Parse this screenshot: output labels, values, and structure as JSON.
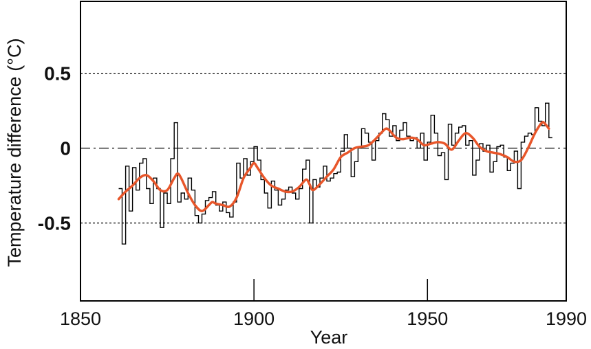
{
  "chart_data": {
    "type": "line",
    "xlabel": "Year",
    "ylabel": "Temperature difference (°C)",
    "xlim": [
      1850,
      1990
    ],
    "ylim": [
      -1.02,
      0.98
    ],
    "x_ticks": [
      1850,
      1900,
      1950,
      1990
    ],
    "y_ticks": [
      0.5,
      0,
      -0.5
    ],
    "y_tick_labels": [
      "0.5",
      "0",
      "-0.5"
    ],
    "reference_lines": [
      {
        "y": 0.5,
        "style": "dotted"
      },
      {
        "y": 0,
        "style": "dash-dot"
      },
      {
        "y": -0.5,
        "style": "dotted"
      }
    ],
    "grid": false,
    "legend": "none",
    "series": [
      {
        "style": "step",
        "color": "#000000",
        "x": [
          1861,
          1862,
          1863,
          1864,
          1865,
          1866,
          1867,
          1868,
          1869,
          1870,
          1871,
          1872,
          1873,
          1874,
          1875,
          1876,
          1877,
          1878,
          1879,
          1880,
          1881,
          1882,
          1883,
          1884,
          1885,
          1886,
          1887,
          1888,
          1889,
          1890,
          1891,
          1892,
          1893,
          1894,
          1895,
          1896,
          1897,
          1898,
          1899,
          1900,
          1901,
          1902,
          1903,
          1904,
          1905,
          1906,
          1907,
          1908,
          1909,
          1910,
          1911,
          1912,
          1913,
          1914,
          1915,
          1916,
          1917,
          1918,
          1919,
          1920,
          1921,
          1922,
          1923,
          1924,
          1925,
          1926,
          1927,
          1928,
          1929,
          1930,
          1931,
          1932,
          1933,
          1934,
          1935,
          1936,
          1937,
          1938,
          1939,
          1940,
          1941,
          1942,
          1943,
          1944,
          1945,
          1946,
          1947,
          1948,
          1949,
          1950,
          1951,
          1952,
          1953,
          1954,
          1955,
          1956,
          1957,
          1958,
          1959,
          1960,
          1961,
          1962,
          1963,
          1964,
          1965,
          1966,
          1967,
          1968,
          1969,
          1970,
          1971,
          1972,
          1973,
          1974,
          1975,
          1976,
          1977,
          1978,
          1979,
          1980,
          1981,
          1982,
          1983,
          1984,
          1985
        ],
        "y": [
          -0.27,
          -0.64,
          -0.12,
          -0.42,
          -0.13,
          -0.28,
          -0.1,
          -0.07,
          -0.27,
          -0.37,
          -0.2,
          -0.27,
          -0.53,
          -0.3,
          -0.37,
          -0.07,
          0.17,
          -0.36,
          -0.3,
          -0.34,
          -0.2,
          -0.28,
          -0.45,
          -0.5,
          -0.44,
          -0.35,
          -0.33,
          -0.29,
          -0.38,
          -0.42,
          -0.36,
          -0.43,
          -0.46,
          -0.36,
          -0.1,
          -0.2,
          -0.07,
          -0.18,
          -0.09,
          0.01,
          -0.08,
          -0.21,
          -0.3,
          -0.4,
          -0.22,
          -0.28,
          -0.38,
          -0.34,
          -0.28,
          -0.26,
          -0.3,
          -0.34,
          -0.27,
          -0.14,
          -0.08,
          -0.5,
          -0.21,
          -0.26,
          -0.2,
          -0.12,
          -0.22,
          -0.2,
          -0.17,
          -0.16,
          -0.02,
          0.09,
          0.0,
          -0.19,
          -0.09,
          0.0,
          0.13,
          0.1,
          0.04,
          -0.08,
          0.05,
          0.1,
          0.23,
          0.19,
          0.08,
          0.15,
          0.05,
          0.12,
          0.17,
          0.08,
          0.05,
          0.07,
          0.0,
          0.1,
          -0.08,
          0.04,
          0.22,
          0.1,
          -0.05,
          -0.03,
          -0.21,
          0.16,
          0.02,
          0.1,
          0.14,
          0.15,
          0.02,
          0.05,
          -0.18,
          -0.08,
          0.03,
          -0.02,
          0.02,
          -0.16,
          -0.09,
          0.01,
          0.02,
          -0.06,
          -0.15,
          -0.1,
          -0.02,
          -0.27,
          0.04,
          0.08,
          0.1,
          0.09,
          0.27,
          0.18,
          0.15,
          0.3,
          0.07
        ]
      },
      {
        "style": "smooth",
        "color": "#e8562a",
        "x": [
          1861,
          1863,
          1865,
          1867,
          1869,
          1871,
          1873,
          1875,
          1877,
          1878,
          1879,
          1881,
          1883,
          1885,
          1887,
          1888,
          1889,
          1891,
          1893,
          1895,
          1897,
          1899,
          1900,
          1901,
          1903,
          1905,
          1907,
          1909,
          1911,
          1913,
          1915,
          1916,
          1917,
          1919,
          1921,
          1923,
          1925,
          1927,
          1929,
          1931,
          1933,
          1935,
          1937,
          1938,
          1939,
          1941,
          1943,
          1945,
          1947,
          1949,
          1951,
          1953,
          1955,
          1957,
          1959,
          1961,
          1963,
          1965,
          1967,
          1969,
          1971,
          1973,
          1975,
          1977,
          1979,
          1981,
          1983,
          1984,
          1985
        ],
        "y": [
          -0.34,
          -0.29,
          -0.25,
          -0.2,
          -0.18,
          -0.22,
          -0.28,
          -0.28,
          -0.2,
          -0.17,
          -0.2,
          -0.3,
          -0.38,
          -0.42,
          -0.38,
          -0.36,
          -0.37,
          -0.38,
          -0.39,
          -0.33,
          -0.2,
          -0.13,
          -0.1,
          -0.13,
          -0.2,
          -0.25,
          -0.27,
          -0.29,
          -0.29,
          -0.26,
          -0.21,
          -0.24,
          -0.28,
          -0.24,
          -0.19,
          -0.14,
          -0.06,
          -0.03,
          0.0,
          0.01,
          0.02,
          0.06,
          0.11,
          0.13,
          0.12,
          0.07,
          0.06,
          0.07,
          0.06,
          0.02,
          0.03,
          0.04,
          0.03,
          -0.01,
          0.05,
          0.1,
          0.07,
          0.01,
          -0.02,
          -0.03,
          -0.04,
          -0.06,
          -0.09,
          -0.08,
          0.0,
          0.1,
          0.17,
          0.16,
          0.13
        ]
      }
    ]
  }
}
